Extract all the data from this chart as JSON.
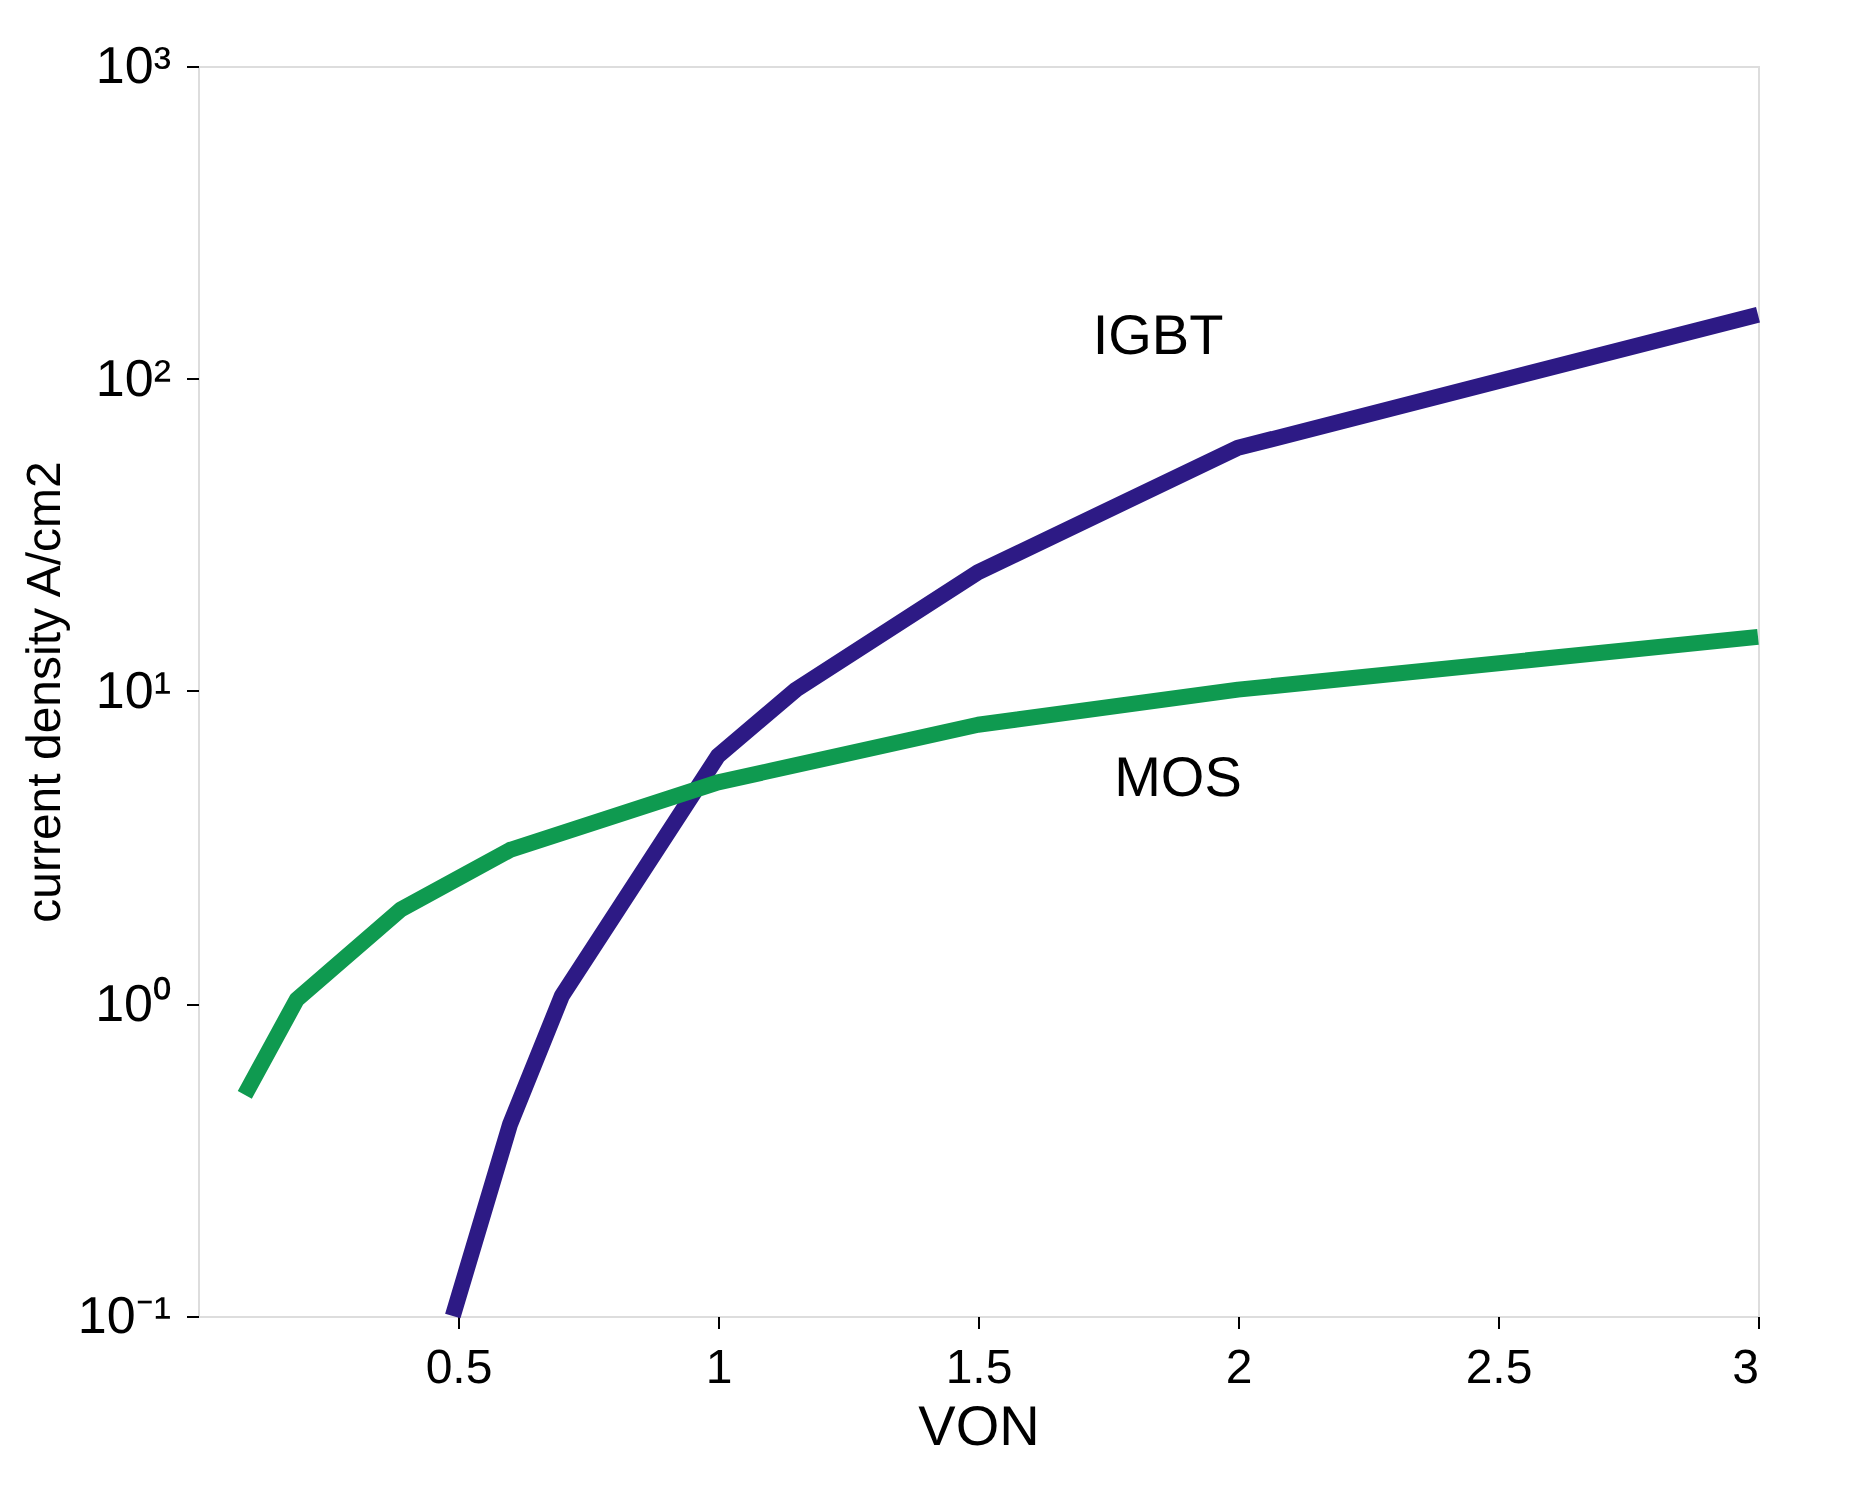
{
  "chart_data": {
    "type": "line",
    "xlabel": "VON",
    "ylabel": "current density A/cm2",
    "log": "y",
    "grid": false,
    "marker": "none",
    "line_style": "solid",
    "xlim": [
      0,
      3
    ],
    "xticks": [
      0.5,
      1,
      1.5,
      2,
      2.5,
      3
    ],
    "ylim": [
      0.1,
      1000
    ],
    "yticks": [
      {
        "value": 0.1,
        "label": "10⁻¹"
      },
      {
        "value": 1,
        "label": "10⁰"
      },
      {
        "value": 10,
        "label": "10¹"
      },
      {
        "value": 100,
        "label": "10²"
      },
      {
        "value": 1000,
        "label": "10³"
      }
    ],
    "series": [
      {
        "name": "IGBT",
        "color": "#2d1a85",
        "x": [
          0.49,
          0.6,
          0.7,
          1.0,
          1.15,
          1.5,
          2.0,
          3.0
        ],
        "values": [
          0.1,
          0.41,
          1.06,
          6.2,
          10.1,
          24,
          60,
          160
        ]
      },
      {
        "name": "MOS",
        "color": "#0f9a50",
        "x": [
          0.09,
          0.19,
          0.39,
          0.6,
          1.0,
          1.5,
          2.0,
          3.0
        ],
        "values": [
          0.51,
          1.03,
          2.0,
          3.1,
          5.1,
          7.8,
          10.1,
          14.9
        ]
      }
    ]
  }
}
